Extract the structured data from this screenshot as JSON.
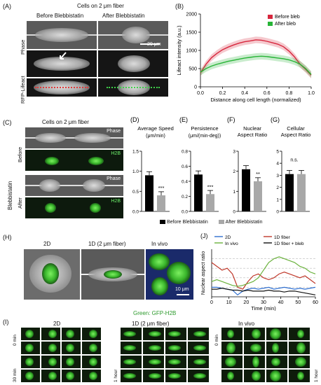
{
  "panelA": {
    "label": "(A)",
    "title": "Cells on 2 μm fiber",
    "col_before": "Before Blebbistatin",
    "col_after": "After Blebbistatin",
    "row_phase": "Phase",
    "row_lifeact": "RFP-Lifeact",
    "scalebar": "20 μm"
  },
  "panelB": {
    "label": "(B)",
    "chart_data": {
      "type": "line",
      "xlabel": "Distance along cell length (normalized)",
      "ylabel": "Lifeact intensity (a.u.)",
      "xlim": [
        0,
        1
      ],
      "ylim": [
        0,
        2000
      ],
      "xticks": [
        "0.0",
        "0.2",
        "0.4",
        "0.6",
        "0.8",
        "1.0"
      ],
      "yticks": [
        "0",
        "500",
        "1000",
        "1500",
        "2000"
      ],
      "legend": "top-right",
      "series": [
        {
          "name": "Before bleb",
          "color": "#d7263d",
          "x": [
            0,
            0.05,
            0.1,
            0.15,
            0.2,
            0.25,
            0.3,
            0.35,
            0.4,
            0.45,
            0.5,
            0.55,
            0.6,
            0.65,
            0.7,
            0.75,
            0.8,
            0.85,
            0.9,
            0.95,
            1.0
          ],
          "y": [
            380,
            620,
            800,
            920,
            1020,
            1090,
            1150,
            1200,
            1240,
            1260,
            1290,
            1280,
            1250,
            1210,
            1170,
            1100,
            980,
            820,
            620,
            480,
            320
          ]
        },
        {
          "name": "After bleb",
          "color": "#27b436",
          "x": [
            0,
            0.05,
            0.1,
            0.15,
            0.2,
            0.25,
            0.3,
            0.35,
            0.4,
            0.45,
            0.5,
            0.55,
            0.6,
            0.65,
            0.7,
            0.75,
            0.8,
            0.85,
            0.9,
            0.95,
            1.0
          ],
          "y": [
            400,
            500,
            570,
            620,
            660,
            700,
            730,
            760,
            790,
            810,
            830,
            840,
            830,
            810,
            790,
            770,
            740,
            690,
            620,
            500,
            340
          ]
        }
      ]
    }
  },
  "panelC": {
    "label": "(C)",
    "title": "Cells on 2 μm fiber",
    "side": "Blebbistatin",
    "before": "Before",
    "after": "After",
    "phase": "Phase",
    "h2b": "H2B"
  },
  "panelsDG": {
    "chart_data": [
      {
        "type": "bar",
        "label": "(D)",
        "title": "Average Speed",
        "ylabel": "(μm/min)",
        "categories": [
          "Before Blebbistatin",
          "After Blebbistatin"
        ],
        "values": [
          0.9,
          0.4
        ],
        "ylim": [
          0,
          1.5
        ],
        "yticks": [
          "0.0",
          "0.5",
          "1.0",
          "1.5"
        ],
        "significance": "***"
      },
      {
        "type": "bar",
        "label": "(E)",
        "title": "Persistence",
        "ylabel": "(μm/(min-deg))",
        "categories": [
          "Before Blebbistatin",
          "After Blebbistatin"
        ],
        "values": [
          0.49,
          0.23
        ],
        "ylim": [
          0,
          0.8
        ],
        "yticks": [
          "0.0",
          "0.2",
          "0.4",
          "0.6",
          "0.8"
        ],
        "significance": "***"
      },
      {
        "type": "bar",
        "label": "(F)",
        "title": "Nuclear Aspect Ratio",
        "ylabel": "",
        "categories": [
          "Before Blebbistatin",
          "After Blebbistatin"
        ],
        "values": [
          2.1,
          1.5
        ],
        "ylim": [
          0,
          3
        ],
        "yticks": [
          "0",
          "1",
          "2",
          "3"
        ],
        "significance": "**"
      },
      {
        "type": "bar",
        "label": "(G)",
        "title": "Cellular Aspect Ratio",
        "ylabel": "",
        "categories": [
          "Before Blebbistatin",
          "After Blebbistatin"
        ],
        "values": [
          3.1,
          3.1
        ],
        "ylim": [
          0,
          5
        ],
        "yticks": [
          "0",
          "1",
          "2",
          "3",
          "4",
          "5"
        ],
        "significance": "n.s."
      }
    ],
    "legend": [
      "Before Blebbistatin",
      "After Blebbistatin"
    ],
    "colors": {
      "before": "#000000",
      "after": "#a8a8a8"
    }
  },
  "panelH": {
    "label": "(H)",
    "c2d": "2D",
    "c1d": "1D (2 μm fiber)",
    "cvivo": "In vivo",
    "scalebar": "10 μm"
  },
  "panelJ": {
    "label": "(J)",
    "chart_data": {
      "type": "line",
      "xlabel": "Time (min)",
      "ylabel": "Nuclear aspect ratio",
      "xlim": [
        0,
        60
      ],
      "ylim": [
        1,
        3.5
      ],
      "xticks": [
        "0",
        "10",
        "20",
        "30",
        "40",
        "50",
        "60"
      ],
      "legend": "top",
      "series": [
        {
          "name": "2D",
          "color": "#2f6fd0",
          "x": [
            0,
            3,
            6,
            9,
            12,
            15,
            18,
            21,
            24,
            27,
            30,
            33,
            36,
            39,
            42,
            45,
            48,
            51,
            54,
            57,
            60
          ],
          "y": [
            1.5,
            1.5,
            1.45,
            1.4,
            1.35,
            1.1,
            1.3,
            1.4,
            1.45,
            1.4,
            1.45,
            1.5,
            1.4,
            1.45,
            1.5,
            1.45,
            1.4,
            1.45,
            1.4,
            1.45,
            1.5
          ]
        },
        {
          "name": "1D fiber",
          "color": "#c0392b",
          "x": [
            0,
            3,
            6,
            9,
            12,
            15,
            18,
            21,
            24,
            27,
            30,
            33,
            36,
            39,
            42,
            45,
            48,
            51,
            54,
            57,
            60
          ],
          "y": [
            2.8,
            2.6,
            2.4,
            2.5,
            2.2,
            1.5,
            1.4,
            1.8,
            2.1,
            2.2,
            2.0,
            1.9,
            2.0,
            2.2,
            2.3,
            2.2,
            2.1,
            2.0,
            2.1,
            1.9,
            1.7
          ]
        },
        {
          "name": "In vivo",
          "color": "#6ab23c",
          "x": [
            0,
            3,
            6,
            9,
            12,
            15,
            18,
            21,
            24,
            27,
            30,
            33,
            36,
            39,
            42,
            45,
            48,
            51,
            54,
            57,
            60
          ],
          "y": [
            1.8,
            1.9,
            1.8,
            1.7,
            1.6,
            1.55,
            1.6,
            1.7,
            1.8,
            2.0,
            2.4,
            2.8,
            3.0,
            3.1,
            3.0,
            2.9,
            2.8,
            2.6,
            2.5,
            2.3,
            2.2
          ]
        },
        {
          "name": "1D fiber + bleb",
          "color": "#111111",
          "x": [
            0,
            3,
            6,
            9,
            12,
            15,
            18,
            21,
            24,
            27,
            30,
            33,
            36,
            39,
            42,
            45,
            48,
            51,
            54,
            57,
            60
          ],
          "y": [
            1.4,
            1.4,
            1.45,
            1.4,
            1.35,
            1.35,
            1.3,
            1.35,
            1.3,
            1.3,
            1.3,
            1.35,
            1.3,
            1.3,
            1.25,
            1.3,
            1.3,
            1.25,
            1.2,
            1.15,
            1.1
          ]
        }
      ]
    }
  },
  "panelI": {
    "label": "(I)",
    "header": "Green: GFP-H2B",
    "c2d": "2D",
    "c1d": "1D (2 μm fiber)",
    "cvivo": "In vivo",
    "t0": "0 min",
    "t30": "30 min",
    "t1h": "1 hour"
  }
}
